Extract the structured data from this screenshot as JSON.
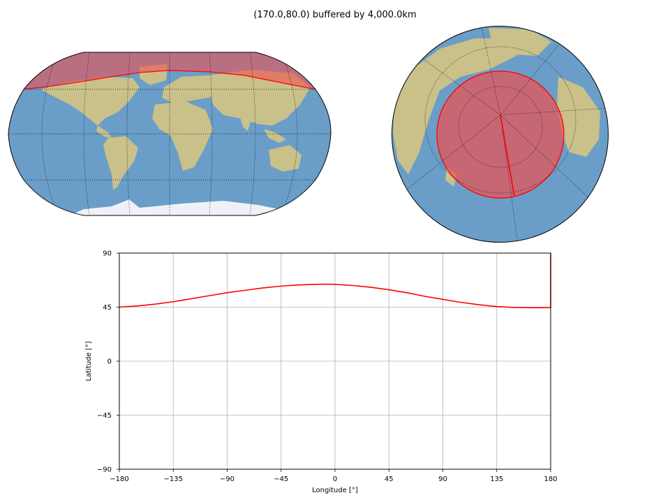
{
  "title": "(170.0,80.0) buffered by 4,000.0km",
  "colors": {
    "ocean": "#6a9ec8",
    "land": "#c9c08a",
    "ice": "#eef2f6",
    "buffer_fill": "#f05050",
    "buffer_edge": "#ff0000",
    "line": "#ff0000",
    "grid": "#b0b0b0"
  },
  "maps": [
    {
      "name": "world-map",
      "projection": "robinson",
      "graticule": "dotted"
    },
    {
      "name": "globe-view",
      "projection": "orthographic",
      "center": [
        170.0,
        80.0
      ],
      "graticule": "dotted"
    }
  ],
  "chart_data": {
    "type": "line",
    "title": "",
    "xlabel": "Longitude [°]",
    "ylabel": "Latitude [°]",
    "xlim": [
      -180,
      180
    ],
    "ylim": [
      -90,
      90
    ],
    "xticks": [
      "−180",
      "−135",
      "−90",
      "−45",
      "0",
      "45",
      "90",
      "135",
      "180"
    ],
    "xtick_values": [
      -180,
      -135,
      -90,
      -45,
      0,
      45,
      90,
      135,
      180
    ],
    "yticks": [
      "−90",
      "−45",
      "0",
      "45",
      "90"
    ],
    "ytick_values": [
      -90,
      -45,
      0,
      45,
      90
    ],
    "grid": true,
    "series": [
      {
        "x": [
          -180,
          -165,
          -150,
          -135,
          -120,
          -105,
          -90,
          -75,
          -60,
          -45,
          -30,
          -15,
          -10,
          0,
          15,
          30,
          45,
          60,
          75,
          90,
          105,
          120,
          135,
          150,
          165,
          170,
          180,
          180,
          180
        ],
        "y": [
          45.0,
          46.0,
          47.5,
          49.5,
          52.0,
          54.5,
          57.0,
          59.0,
          61.0,
          62.5,
          63.5,
          64.0,
          64.1,
          64.0,
          63.0,
          61.5,
          59.5,
          57.0,
          54.0,
          51.5,
          49.0,
          47.0,
          45.5,
          44.7,
          44.5,
          44.5,
          44.6,
          90,
          90
        ]
      }
    ]
  }
}
